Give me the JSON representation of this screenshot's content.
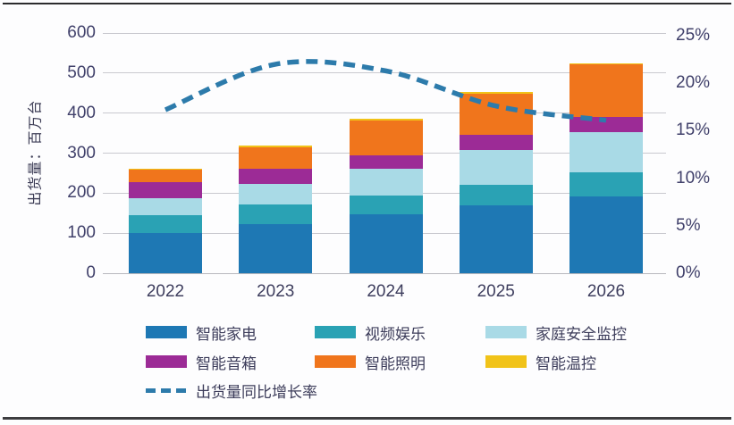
{
  "frame": {
    "background": "#fdfdfe",
    "rule_color": "#2c2c2e"
  },
  "chart_data": {
    "type": "bar",
    "subtype": "stacked-bars-with-line",
    "title": "",
    "categories": [
      "2022",
      "2023",
      "2024",
      "2025",
      "2026"
    ],
    "series": [
      {
        "name": "智能家电",
        "color": "#1e78b4",
        "values": [
          100,
          122,
          147,
          170,
          192
        ]
      },
      {
        "name": "视频娱乐",
        "color": "#2aa2b4",
        "values": [
          45,
          49,
          48,
          50,
          60
        ]
      },
      {
        "name": "家庭安全监控",
        "color": "#a9dae6",
        "values": [
          43,
          52,
          66,
          88,
          100
        ]
      },
      {
        "name": "智能音箱",
        "color": "#9c2b96",
        "values": [
          40,
          37,
          34,
          37,
          39
        ]
      },
      {
        "name": "智能照明",
        "color": "#f0751c",
        "values": [
          31,
          55,
          86,
          103,
          130
        ]
      },
      {
        "name": "智能温控",
        "color": "#f1c319",
        "values": [
          3,
          3,
          4,
          4,
          4
        ]
      }
    ],
    "stack_totals": [
      262,
      318,
      385,
      452,
      525
    ],
    "line_series": {
      "name": "出货量同比增长率",
      "color": "#2d7bab",
      "style": "dashed",
      "values_pct": [
        17.2,
        22.0,
        21.3,
        17.6,
        16.1
      ]
    },
    "left_axis": {
      "title": "出货量：百万台",
      "ticks": [
        0,
        100,
        200,
        300,
        400,
        500,
        600
      ],
      "min": 0,
      "max": 600
    },
    "right_axis": {
      "ticks": [
        "0%",
        "5%",
        "10%",
        "15%",
        "20%",
        "25%"
      ],
      "min_pct": 0,
      "max_pct": 25
    },
    "grid": "horizontal",
    "legend_position": "bottom",
    "text_color": "#41416b",
    "grid_color": "#c9c9cf"
  }
}
